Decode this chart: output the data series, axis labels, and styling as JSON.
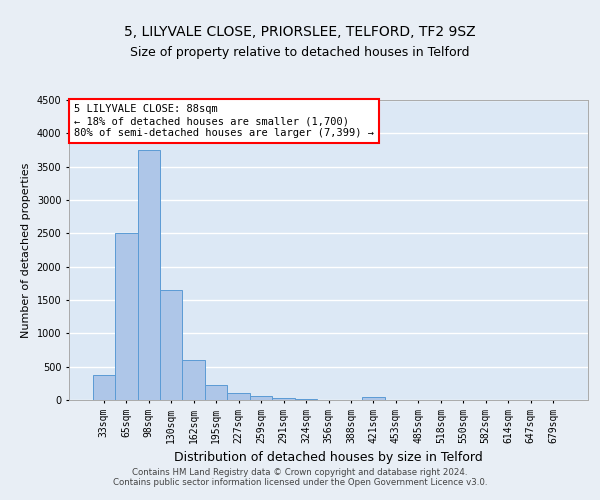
{
  "title1": "5, LILYVALE CLOSE, PRIORSLEE, TELFORD, TF2 9SZ",
  "title2": "Size of property relative to detached houses in Telford",
  "xlabel": "Distribution of detached houses by size in Telford",
  "ylabel": "Number of detached properties",
  "categories": [
    "33sqm",
    "65sqm",
    "98sqm",
    "130sqm",
    "162sqm",
    "195sqm",
    "227sqm",
    "259sqm",
    "291sqm",
    "324sqm",
    "356sqm",
    "388sqm",
    "421sqm",
    "453sqm",
    "485sqm",
    "518sqm",
    "550sqm",
    "582sqm",
    "614sqm",
    "647sqm",
    "679sqm"
  ],
  "values": [
    375,
    2500,
    3750,
    1650,
    600,
    230,
    105,
    60,
    35,
    20,
    5,
    0,
    50,
    0,
    0,
    0,
    0,
    0,
    0,
    0,
    0
  ],
  "bar_color": "#aec6e8",
  "bar_edge_color": "#5b9bd5",
  "annotation_box_text": "5 LILYVALE CLOSE: 88sqm\n← 18% of detached houses are smaller (1,700)\n80% of semi-detached houses are larger (7,399) →",
  "annotation_box_color": "red",
  "annotation_box_facecolor": "white",
  "ylim": [
    0,
    4500
  ],
  "yticks": [
    0,
    500,
    1000,
    1500,
    2000,
    2500,
    3000,
    3500,
    4000,
    4500
  ],
  "background_color": "#e8eef5",
  "plot_background_color": "#dce8f5",
  "grid_color": "white",
  "footer_text": "Contains HM Land Registry data © Crown copyright and database right 2024.\nContains public sector information licensed under the Open Government Licence v3.0.",
  "title1_fontsize": 10,
  "title2_fontsize": 9,
  "xlabel_fontsize": 9,
  "ylabel_fontsize": 8,
  "annotation_fontsize": 7.5,
  "tick_fontsize": 7
}
